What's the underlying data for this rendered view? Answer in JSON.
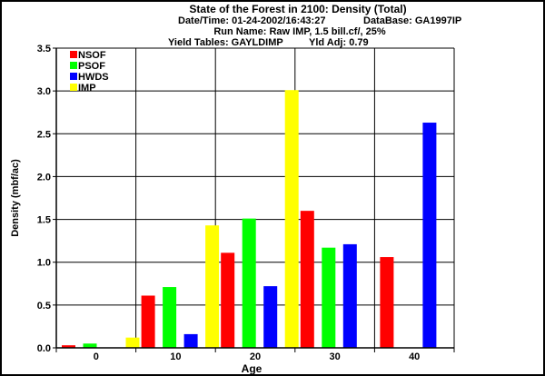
{
  "chart_data": {
    "type": "bar",
    "title": "State of the Forest in 2100: Density (Total)",
    "subtitle_lines": [
      {
        "left": "Date/Time: 01-24-2002/16:43:27",
        "right": "DataBase: GA1997IP"
      },
      {
        "left": "Run Name: Raw IMP, 1.5 bill.cf/, 25%",
        "right": ""
      },
      {
        "left": "Yield Tables: GAYLDIMP",
        "right": "Yld Adj: 0.79"
      }
    ],
    "xlabel": "Age",
    "ylabel": "Density (mbf/ac)",
    "categories": [
      "0",
      "10",
      "20",
      "30",
      "40"
    ],
    "ylim": [
      0,
      3.5
    ],
    "yticks": [
      "0.0",
      "0.5",
      "1.0",
      "1.5",
      "2.0",
      "2.5",
      "3.0",
      "3.5"
    ],
    "grid": true,
    "legend_position": "top-left",
    "series": [
      {
        "name": "NSOF",
        "color": "#ff0000",
        "values": [
          0.03,
          0.61,
          1.11,
          1.6,
          1.06
        ]
      },
      {
        "name": "PSOF",
        "color": "#00ff00",
        "values": [
          0.05,
          0.71,
          1.51,
          1.17,
          0
        ]
      },
      {
        "name": "HWDS",
        "color": "#0000ff",
        "values": [
          0,
          0.16,
          0.72,
          1.21,
          2.63
        ]
      },
      {
        "name": "IMP",
        "color": "#ffff00",
        "values": [
          0.12,
          1.43,
          3.01,
          0,
          0
        ]
      }
    ]
  }
}
